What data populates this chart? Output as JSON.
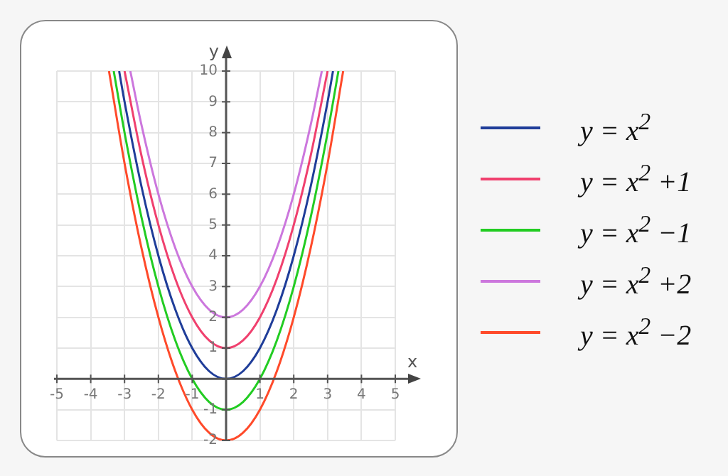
{
  "chart_data": {
    "type": "line",
    "xlabel": "x",
    "ylabel": "y",
    "xlim": [
      -5,
      5
    ],
    "ylim": [
      -2,
      10
    ],
    "xticks": [
      -5,
      -4,
      -3,
      -2,
      -1,
      {
        "value": 0,
        "label": null
      },
      1,
      2,
      3,
      4,
      5
    ],
    "yticks": [
      -2,
      -1,
      {
        "value": 0,
        "label": null
      },
      1,
      2,
      3,
      4,
      5,
      6,
      7,
      8,
      9,
      10
    ],
    "grid": true,
    "legend": "right",
    "marker": "none",
    "line_style": "solid",
    "series": [
      {
        "name": "y = x$^{2}$",
        "color": "#1f3d99",
        "x": [
          -3.16,
          -3,
          -2.5,
          -2,
          -1.5,
          -1,
          -0.5,
          0,
          0.5,
          1,
          1.5,
          2,
          2.5,
          3,
          3.16
        ],
        "values": [
          10,
          9,
          6.25,
          4,
          2.25,
          1,
          0.25,
          0,
          0.25,
          1,
          2.25,
          4,
          6.25,
          9,
          10
        ]
      },
      {
        "name": "y = x$^{2}$ +1",
        "color": "#f0406e",
        "x": [
          -3,
          -2.5,
          -2,
          -1.5,
          -1,
          -0.5,
          0,
          0.5,
          1,
          1.5,
          2,
          2.5,
          3
        ],
        "values": [
          10,
          7.25,
          5,
          3.25,
          2,
          1.25,
          1,
          1.25,
          2,
          3.25,
          5,
          7.25,
          10
        ]
      },
      {
        "name": "y = x$^{2}$ −1",
        "color": "#22cc22",
        "x": [
          -3.32,
          -3,
          -2.5,
          -2,
          -1.5,
          -1,
          -0.5,
          0,
          0.5,
          1,
          1.5,
          2,
          2.5,
          3,
          3.32
        ],
        "values": [
          10,
          8,
          5.25,
          3,
          1.25,
          0,
          -0.75,
          -1,
          -0.75,
          0,
          1.25,
          3,
          5.25,
          8,
          10
        ]
      },
      {
        "name": "y = x$^{2}$ +2",
        "color": "#cc77dd",
        "x": [
          -2.83,
          -2.5,
          -2,
          -1.5,
          -1,
          -0.5,
          0,
          0.5,
          1,
          1.5,
          2,
          2.5,
          2.83
        ],
        "values": [
          10,
          8.25,
          6,
          4.25,
          3,
          2.25,
          2,
          2.25,
          3,
          4.25,
          6,
          8.25,
          10
        ]
      },
      {
        "name": "y = x$^{2}$ −2",
        "color": "#ff4a2a",
        "x": [
          -3.46,
          -3,
          -2.5,
          -2,
          -1.5,
          -1,
          -0.5,
          0,
          0.5,
          1,
          1.5,
          2,
          2.5,
          3,
          3.46
        ],
        "values": [
          10,
          7,
          4.25,
          2,
          0.25,
          -1,
          -1.75,
          -2,
          -1.75,
          -1,
          0.25,
          2,
          4.25,
          7,
          10
        ]
      }
    ]
  }
}
